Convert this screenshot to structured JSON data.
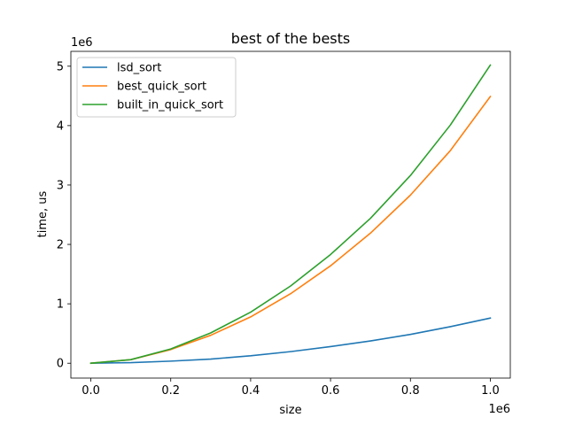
{
  "chart_data": {
    "type": "line",
    "title": "best of the bests",
    "xlabel": "size",
    "ylabel": "time, us",
    "x_scale_label": "1e6",
    "y_scale_label": "1e6",
    "xlim": [
      -50000,
      1050000
    ],
    "ylim": [
      -250000,
      5250000
    ],
    "x_ticks": [
      0,
      200000,
      400000,
      600000,
      800000,
      1000000
    ],
    "x_tick_labels": [
      "0.0",
      "0.2",
      "0.4",
      "0.6",
      "0.8",
      "1.0"
    ],
    "y_ticks": [
      0,
      1000000,
      2000000,
      3000000,
      4000000,
      5000000
    ],
    "y_tick_labels": [
      "0",
      "1",
      "2",
      "3",
      "4",
      "5"
    ],
    "grid": false,
    "legend_position": "top-left",
    "x": [
      0,
      100000,
      200000,
      300000,
      400000,
      500000,
      600000,
      700000,
      800000,
      900000,
      1000000
    ],
    "series": [
      {
        "name": "lsd_sort",
        "color": "#1f77b4",
        "values": [
          0,
          10000,
          35000,
          70000,
          125000,
          195000,
          280000,
          375000,
          485000,
          615000,
          760000
        ]
      },
      {
        "name": "best_quick_sort",
        "color": "#ff7f0e",
        "values": [
          0,
          60000,
          230000,
          470000,
          780000,
          1170000,
          1640000,
          2190000,
          2830000,
          3580000,
          4490000
        ]
      },
      {
        "name": "built_in_quick_sort",
        "color": "#2ca02c",
        "values": [
          0,
          60000,
          240000,
          510000,
          860000,
          1300000,
          1830000,
          2440000,
          3160000,
          4010000,
          5020000
        ]
      }
    ]
  }
}
